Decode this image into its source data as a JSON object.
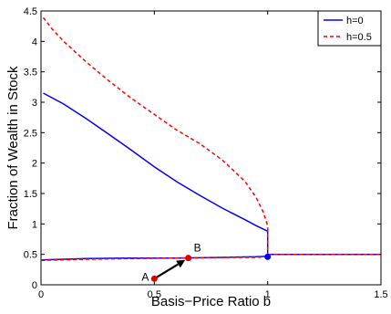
{
  "chart_data": {
    "type": "line",
    "xlabel": "Basis−Price Ratio b",
    "ylabel": "Fraction of Wealth in Stock",
    "xlim": [
      0,
      1.5
    ],
    "ylim": [
      0,
      4.5
    ],
    "x_ticks": [
      "0",
      "0.5",
      "1",
      "1.5"
    ],
    "y_ticks": [
      "0",
      "0.5",
      "1",
      "1.5",
      "2",
      "2.5",
      "3",
      "3.5",
      "4",
      "4.5"
    ],
    "grid": false,
    "legend_position": "top-right",
    "series": [
      {
        "name": "h=0",
        "color": "#0000ff",
        "style": "solid",
        "segments": [
          {
            "x": [
              0.01,
              0.1,
              0.2,
              0.3,
              0.4,
              0.5,
              0.6,
              0.7,
              0.8,
              0.9,
              0.95,
              1.0
            ],
            "y": [
              3.15,
              2.97,
              2.73,
              2.47,
              2.21,
              1.94,
              1.69,
              1.47,
              1.26,
              1.07,
              0.97,
              0.88
            ]
          },
          {
            "x": [
              0.0,
              0.2,
              0.4,
              0.6,
              0.8,
              0.95,
              1.0
            ],
            "y": [
              0.41,
              0.43,
              0.44,
              0.44,
              0.45,
              0.46,
              0.47
            ]
          },
          {
            "x": [
              1.0,
              1.0
            ],
            "y": [
              0.47,
              0.88
            ]
          },
          {
            "x": [
              1.0,
              1.5
            ],
            "y": [
              0.5,
              0.5
            ]
          }
        ]
      },
      {
        "name": "h=0.5",
        "color": "#ff0000",
        "style": "dashed",
        "segments": [
          {
            "x": [
              0.01,
              0.05,
              0.1,
              0.2,
              0.3,
              0.4,
              0.5,
              0.6,
              0.7,
              0.8,
              0.9,
              0.95,
              0.98,
              1.0
            ],
            "y": [
              4.39,
              4.2,
              4.0,
              3.66,
              3.35,
              3.06,
              2.8,
              2.54,
              2.32,
              2.05,
              1.7,
              1.43,
              1.2,
              0.97
            ]
          },
          {
            "x": [
              0.0,
              0.2,
              0.4,
              0.6,
              0.8,
              0.95,
              1.0
            ],
            "y": [
              0.4,
              0.42,
              0.43,
              0.44,
              0.45,
              0.45,
              0.46
            ]
          },
          {
            "x": [
              1.0,
              1.0
            ],
            "y": [
              0.46,
              0.97
            ]
          },
          {
            "x": [
              1.0,
              1.5
            ],
            "y": [
              0.5,
              0.5
            ]
          }
        ]
      }
    ],
    "points": [
      {
        "label": "A",
        "x": 0.5,
        "y": 0.1,
        "color": "#dd0000"
      },
      {
        "label": "B",
        "x": 0.65,
        "y": 0.44,
        "color": "#dd0000"
      },
      {
        "label": "",
        "x": 1.0,
        "y": 0.46,
        "color": "#0000ff"
      }
    ],
    "arrow": {
      "from": "A",
      "to": "B",
      "color": "#000000"
    }
  }
}
